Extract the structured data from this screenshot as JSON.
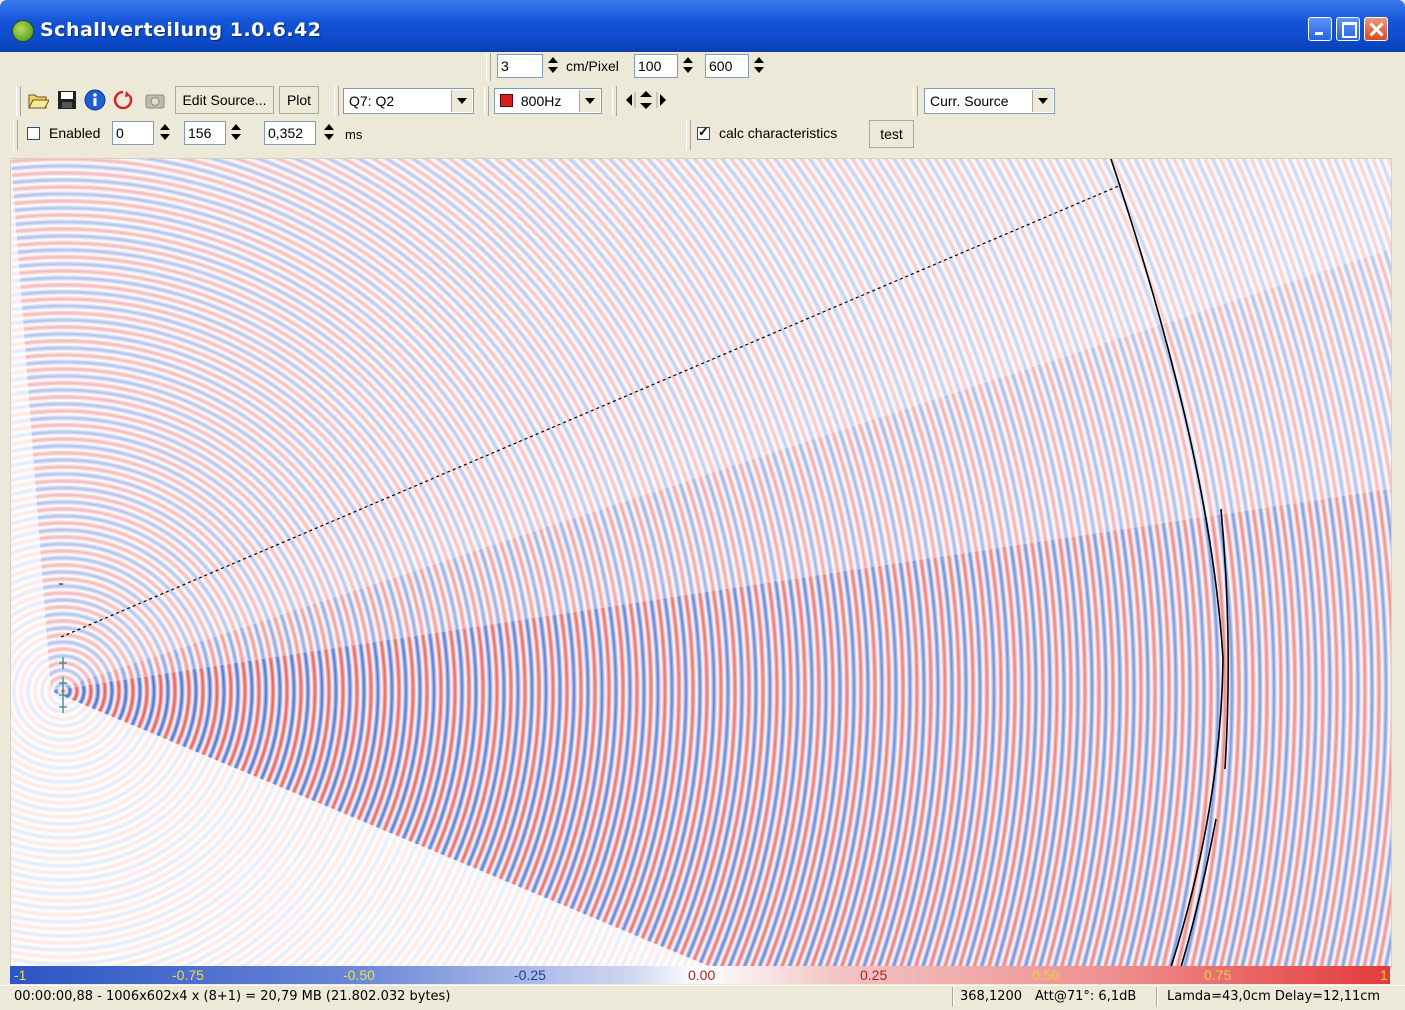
{
  "window": {
    "title": "Schallverteilung  1.0.6.42"
  },
  "toolbar_top": {
    "resolution_value": "3",
    "resolution_unit": "cm/Pixel",
    "value_a": "100",
    "value_b": "600"
  },
  "toolbar_main": {
    "edit_source_label": "Edit Source...",
    "plot_label": "Plot",
    "source_select": "Q7: Q2",
    "frequency_select": "800Hz",
    "frequency_color": "#d42020",
    "curr_source_select": "Curr. Source"
  },
  "toolbar_time": {
    "enabled_label": "Enabled",
    "enabled_checked": false,
    "start_value": "0",
    "step_value": "156",
    "time_value": "0,352",
    "time_unit": "ms",
    "calc_label": "calc characteristics",
    "calc_checked": true,
    "test_label": "test"
  },
  "colorscale": {
    "ticks": [
      "-1",
      "-0.75",
      "-0.50",
      "-0.25",
      "0.00",
      "0.25",
      "0.50",
      "0.75",
      "1"
    ],
    "min_color": "#2b55c4",
    "mid_color": "#ffffff",
    "max_color": "#e43a3a"
  },
  "status": {
    "left": "00:00:00,88  -  1006x602x4 x (8+1) = 20,79 MB (21.802.032 bytes)",
    "coords": "368,1200",
    "attenuation": "Att@71°: 6,1dB",
    "lamda_delay": "Lamda=43,0cm  Delay=12,11cm"
  }
}
